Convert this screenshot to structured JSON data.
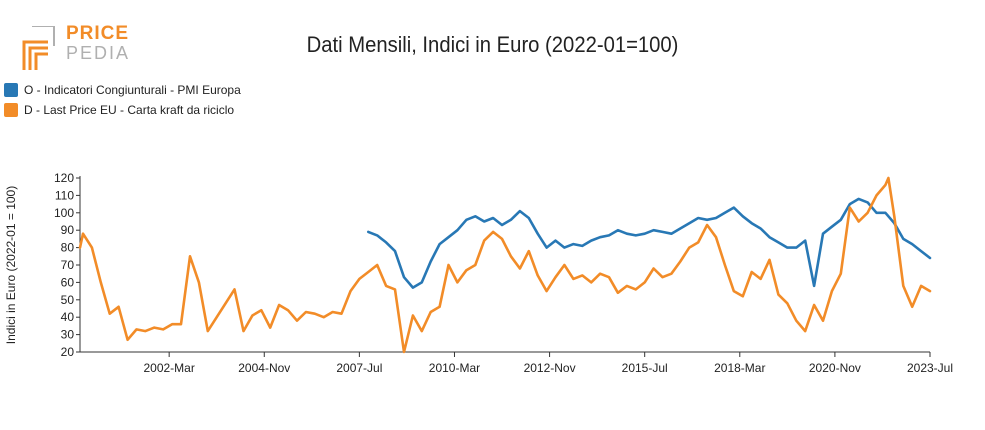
{
  "brand": {
    "logo_line1": "PRICE",
    "logo_line2": "PEDIA",
    "accent": "#F28C28",
    "grey": "#B0B0B0"
  },
  "chart_data": {
    "type": "line",
    "title": "Dati Mensili, Indici in Euro (2022-01=100)",
    "ylabel": "Indici in Euro (2022-01 = 100)",
    "xlabel": "",
    "ylim": [
      20,
      120
    ],
    "yticks": [
      20,
      30,
      40,
      50,
      60,
      70,
      80,
      90,
      100,
      110,
      120
    ],
    "xlim": [
      "1999-09",
      "2023-07"
    ],
    "xticks": [
      {
        "date": "2002-03",
        "label": "2002-Mar"
      },
      {
        "date": "2004-11",
        "label": "2004-Nov"
      },
      {
        "date": "2007-07",
        "label": "2007-Jul"
      },
      {
        "date": "2010-03",
        "label": "2010-Mar"
      },
      {
        "date": "2012-11",
        "label": "2012-Nov"
      },
      {
        "date": "2015-07",
        "label": "2015-Jul"
      },
      {
        "date": "2018-03",
        "label": "2018-Mar"
      },
      {
        "date": "2020-11",
        "label": "2020-Nov"
      },
      {
        "date": "2023-07",
        "label": "2023-Jul"
      }
    ],
    "grid": false,
    "legend_position": "top-left",
    "series": [
      {
        "name": "O - Indicatori Congiunturali - PMI Europa",
        "color": "#2878B5",
        "points": [
          [
            "2007-10",
            89
          ],
          [
            "2008-01",
            87
          ],
          [
            "2008-04",
            83
          ],
          [
            "2008-07",
            78
          ],
          [
            "2008-10",
            63
          ],
          [
            "2009-01",
            57
          ],
          [
            "2009-04",
            60
          ],
          [
            "2009-07",
            72
          ],
          [
            "2009-10",
            82
          ],
          [
            "2010-01",
            86
          ],
          [
            "2010-04",
            90
          ],
          [
            "2010-07",
            96
          ],
          [
            "2010-10",
            98
          ],
          [
            "2011-01",
            95
          ],
          [
            "2011-04",
            97
          ],
          [
            "2011-07",
            93
          ],
          [
            "2011-10",
            96
          ],
          [
            "2012-01",
            101
          ],
          [
            "2012-04",
            97
          ],
          [
            "2012-07",
            88
          ],
          [
            "2012-10",
            80
          ],
          [
            "2013-01",
            84
          ],
          [
            "2013-04",
            80
          ],
          [
            "2013-07",
            82
          ],
          [
            "2013-10",
            81
          ],
          [
            "2014-01",
            84
          ],
          [
            "2014-04",
            86
          ],
          [
            "2014-07",
            87
          ],
          [
            "2014-10",
            90
          ],
          [
            "2015-01",
            88
          ],
          [
            "2015-04",
            87
          ],
          [
            "2015-07",
            88
          ],
          [
            "2015-10",
            90
          ],
          [
            "2016-01",
            89
          ],
          [
            "2016-04",
            88
          ],
          [
            "2016-07",
            91
          ],
          [
            "2016-10",
            94
          ],
          [
            "2017-01",
            97
          ],
          [
            "2017-04",
            96
          ],
          [
            "2017-07",
            97
          ],
          [
            "2017-10",
            100
          ],
          [
            "2018-01",
            103
          ],
          [
            "2018-04",
            98
          ],
          [
            "2018-07",
            94
          ],
          [
            "2018-10",
            91
          ],
          [
            "2019-01",
            86
          ],
          [
            "2019-04",
            83
          ],
          [
            "2019-07",
            80
          ],
          [
            "2019-10",
            80
          ],
          [
            "2020-01",
            84
          ],
          [
            "2020-04",
            58
          ],
          [
            "2020-07",
            88
          ],
          [
            "2020-10",
            92
          ],
          [
            "2021-01",
            96
          ],
          [
            "2021-04",
            105
          ],
          [
            "2021-07",
            108
          ],
          [
            "2021-10",
            106
          ],
          [
            "2022-01",
            100
          ],
          [
            "2022-04",
            100
          ],
          [
            "2022-07",
            94
          ],
          [
            "2022-10",
            85
          ],
          [
            "2023-01",
            82
          ],
          [
            "2023-04",
            78
          ],
          [
            "2023-07",
            74
          ]
        ]
      },
      {
        "name": "D - Last Price EU - Carta kraft da riciclo",
        "color": "#F28C28",
        "points": [
          [
            "1999-09",
            80
          ],
          [
            "1999-10",
            88
          ],
          [
            "2000-01",
            80
          ],
          [
            "2000-04",
            60
          ],
          [
            "2000-07",
            42
          ],
          [
            "2000-10",
            46
          ],
          [
            "2001-01",
            27
          ],
          [
            "2001-04",
            33
          ],
          [
            "2001-07",
            32
          ],
          [
            "2001-10",
            34
          ],
          [
            "2002-01",
            33
          ],
          [
            "2002-04",
            36
          ],
          [
            "2002-07",
            36
          ],
          [
            "2002-10",
            75
          ],
          [
            "2003-01",
            60
          ],
          [
            "2003-04",
            32
          ],
          [
            "2003-07",
            40
          ],
          [
            "2003-10",
            48
          ],
          [
            "2004-01",
            56
          ],
          [
            "2004-04",
            32
          ],
          [
            "2004-07",
            41
          ],
          [
            "2004-10",
            44
          ],
          [
            "2005-01",
            34
          ],
          [
            "2005-04",
            47
          ],
          [
            "2005-07",
            44
          ],
          [
            "2005-10",
            38
          ],
          [
            "2006-01",
            43
          ],
          [
            "2006-04",
            42
          ],
          [
            "2006-07",
            40
          ],
          [
            "2006-10",
            43
          ],
          [
            "2007-01",
            42
          ],
          [
            "2007-04",
            55
          ],
          [
            "2007-07",
            62
          ],
          [
            "2007-10",
            66
          ],
          [
            "2008-01",
            70
          ],
          [
            "2008-04",
            58
          ],
          [
            "2008-07",
            56
          ],
          [
            "2008-10",
            20
          ],
          [
            "2009-01",
            41
          ],
          [
            "2009-04",
            32
          ],
          [
            "2009-07",
            43
          ],
          [
            "2009-10",
            46
          ],
          [
            "2010-01",
            70
          ],
          [
            "2010-04",
            60
          ],
          [
            "2010-07",
            67
          ],
          [
            "2010-10",
            70
          ],
          [
            "2011-01",
            84
          ],
          [
            "2011-04",
            89
          ],
          [
            "2011-07",
            85
          ],
          [
            "2011-10",
            75
          ],
          [
            "2012-01",
            68
          ],
          [
            "2012-04",
            78
          ],
          [
            "2012-07",
            64
          ],
          [
            "2012-10",
            55
          ],
          [
            "2013-01",
            63
          ],
          [
            "2013-04",
            70
          ],
          [
            "2013-07",
            62
          ],
          [
            "2013-10",
            64
          ],
          [
            "2014-01",
            60
          ],
          [
            "2014-04",
            65
          ],
          [
            "2014-07",
            63
          ],
          [
            "2014-10",
            54
          ],
          [
            "2015-01",
            58
          ],
          [
            "2015-04",
            56
          ],
          [
            "2015-07",
            60
          ],
          [
            "2015-10",
            68
          ],
          [
            "2016-01",
            63
          ],
          [
            "2016-04",
            65
          ],
          [
            "2016-07",
            72
          ],
          [
            "2016-10",
            80
          ],
          [
            "2017-01",
            83
          ],
          [
            "2017-04",
            93
          ],
          [
            "2017-07",
            86
          ],
          [
            "2017-10",
            70
          ],
          [
            "2018-01",
            55
          ],
          [
            "2018-04",
            52
          ],
          [
            "2018-07",
            66
          ],
          [
            "2018-10",
            62
          ],
          [
            "2019-01",
            73
          ],
          [
            "2019-04",
            53
          ],
          [
            "2019-07",
            48
          ],
          [
            "2019-10",
            38
          ],
          [
            "2020-01",
            32
          ],
          [
            "2020-04",
            47
          ],
          [
            "2020-07",
            38
          ],
          [
            "2020-10",
            55
          ],
          [
            "2021-01",
            65
          ],
          [
            "2021-04",
            103
          ],
          [
            "2021-07",
            95
          ],
          [
            "2021-10",
            100
          ],
          [
            "2022-01",
            110
          ],
          [
            "2022-04",
            116
          ],
          [
            "2022-05",
            120
          ],
          [
            "2022-07",
            98
          ],
          [
            "2022-10",
            58
          ],
          [
            "2023-01",
            46
          ],
          [
            "2023-04",
            58
          ],
          [
            "2023-07",
            55
          ]
        ]
      }
    ]
  }
}
